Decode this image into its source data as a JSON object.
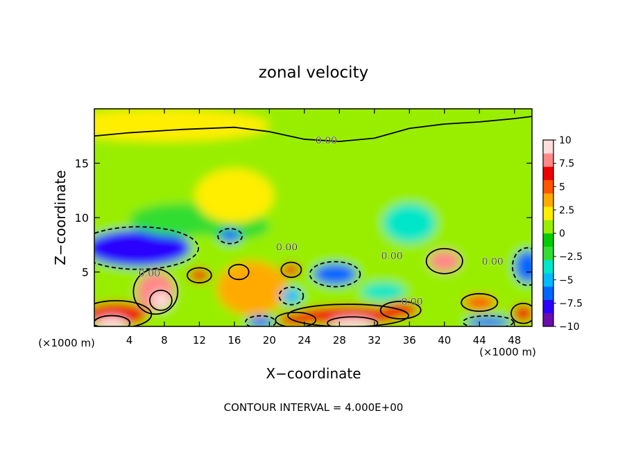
{
  "chart_data": {
    "type": "heatmap",
    "title": "zonal velocity",
    "xlabel": "X−coordinate",
    "ylabel": "Z−coordinate",
    "x_unit_left": "(×1000 m)",
    "x_unit_right": "(×1000 m)",
    "footer": "CONTOUR INTERVAL = 4.000E+00",
    "xlim": [
      0,
      50
    ],
    "ylim": [
      0,
      20
    ],
    "x_ticks": [
      4,
      8,
      12,
      16,
      20,
      24,
      28,
      32,
      36,
      40,
      44,
      48
    ],
    "y_ticks": [
      5,
      10,
      15
    ],
    "colorbar": {
      "min": -10,
      "max": 10,
      "labels": [
        "10",
        "7.5",
        "5",
        "2.5",
        "0",
        "−2.5",
        "−5",
        "−7.5",
        "−10"
      ],
      "label_values": [
        10,
        7.5,
        5,
        2.5,
        0,
        -2.5,
        -5,
        -7.5,
        -10
      ],
      "colors": [
        "#6a0dad",
        "#2a00ff",
        "#0066ff",
        "#00bbff",
        "#00e6c8",
        "#33dd33",
        "#00cc00",
        "#99ee00",
        "#ffee00",
        "#ffaa00",
        "#ff5500",
        "#ee0000",
        "#ff8888",
        "#ffdddd"
      ]
    },
    "contour_labels": [
      {
        "text": "0.00",
        "x": 26.5,
        "z": 17.1
      },
      {
        "text": "0.00",
        "x": 22,
        "z": 7.3
      },
      {
        "text": "0.00",
        "x": 6.3,
        "z": 4.9
      },
      {
        "text": "0.00",
        "x": 34,
        "z": 6.5
      },
      {
        "text": "0.00",
        "x": 36.3,
        "z": 2.3
      },
      {
        "text": "0.00",
        "x": 45.5,
        "z": 6.0
      }
    ],
    "features": [
      {
        "kind": "background",
        "value": 0
      },
      {
        "kind": "blob",
        "x": 5,
        "z": 7.2,
        "rx": 6,
        "rz": 1.7,
        "value": -8
      },
      {
        "kind": "blob",
        "x": 10,
        "z": 9.8,
        "rx": 6,
        "rz": 1.5,
        "value": -2.5
      },
      {
        "kind": "blob",
        "x": 16,
        "z": 9.2,
        "rx": 4,
        "rz": 1.2,
        "value": -2.5
      },
      {
        "kind": "blob",
        "x": 16,
        "z": 12,
        "rx": 4.5,
        "rz": 2.5,
        "value": 1.5
      },
      {
        "kind": "blob",
        "x": 7,
        "z": 3.2,
        "rx": 2.2,
        "rz": 1.8,
        "value": 8
      },
      {
        "kind": "blob",
        "x": 7.6,
        "z": 2.4,
        "rx": 1.1,
        "rz": 0.8,
        "value": 9
      },
      {
        "kind": "blob",
        "x": 2.5,
        "z": 1.1,
        "rx": 3.5,
        "rz": 1.1,
        "value": 7
      },
      {
        "kind": "blob",
        "x": 2,
        "z": 0.3,
        "rx": 1.8,
        "rz": 0.6,
        "value": 10
      },
      {
        "kind": "blob",
        "x": 18,
        "z": 3.5,
        "rx": 4,
        "rz": 2.5,
        "value": 3
      },
      {
        "kind": "blob",
        "x": 22.5,
        "z": 5.2,
        "rx": 1,
        "rz": 0.6,
        "value": 6
      },
      {
        "kind": "blob",
        "x": 12,
        "z": 4.7,
        "rx": 1.2,
        "rz": 0.6,
        "value": 6
      },
      {
        "kind": "blob",
        "x": 16.5,
        "z": 5.0,
        "rx": 1,
        "rz": 0.6,
        "value": 4
      },
      {
        "kind": "blob",
        "x": 29,
        "z": 1.0,
        "rx": 6,
        "rz": 0.9,
        "value": 7
      },
      {
        "kind": "blob",
        "x": 29.5,
        "z": 0.3,
        "rx": 2.5,
        "rz": 0.5,
        "value": 10
      },
      {
        "kind": "blob",
        "x": 23,
        "z": 0.6,
        "rx": 2,
        "rz": 0.6,
        "value": 6
      },
      {
        "kind": "blob",
        "x": 35,
        "z": 1.5,
        "rx": 2,
        "rz": 0.7,
        "value": 6
      },
      {
        "kind": "blob",
        "x": 27.5,
        "z": 4.8,
        "rx": 2.5,
        "rz": 1,
        "value": -6
      },
      {
        "kind": "blob",
        "x": 33,
        "z": 3.2,
        "rx": 2.5,
        "rz": 0.8,
        "value": -3
      },
      {
        "kind": "blob",
        "x": 22.5,
        "z": 2.8,
        "rx": 1.2,
        "rz": 0.7,
        "value": -5
      },
      {
        "kind": "blob",
        "x": 19,
        "z": 0.4,
        "rx": 1.5,
        "rz": 0.5,
        "value": -6
      },
      {
        "kind": "blob",
        "x": 15.5,
        "z": 8.3,
        "rx": 1.2,
        "rz": 0.6,
        "value": -6
      },
      {
        "kind": "blob",
        "x": 36,
        "z": 9.5,
        "rx": 3,
        "rz": 1.8,
        "value": -3
      },
      {
        "kind": "blob",
        "x": 40,
        "z": 6,
        "rx": 1.8,
        "rz": 1.0,
        "value": 8
      },
      {
        "kind": "blob",
        "x": 44,
        "z": 2.2,
        "rx": 1.8,
        "rz": 0.7,
        "value": 5
      },
      {
        "kind": "blob",
        "x": 45,
        "z": 0.4,
        "rx": 2.5,
        "rz": 0.5,
        "value": -7
      },
      {
        "kind": "blob",
        "x": 49.5,
        "z": 5.5,
        "rx": 1.5,
        "rz": 1.5,
        "value": -7
      },
      {
        "kind": "blob",
        "x": 49,
        "z": 1.2,
        "rx": 1.2,
        "rz": 0.8,
        "value": 6
      },
      {
        "kind": "blob",
        "x": 8,
        "z": 18.5,
        "rx": 12,
        "rz": 1.5,
        "value": 2
      },
      {
        "kind": "blob",
        "x": 43,
        "z": 14,
        "rx": 5,
        "rz": 4,
        "value": 1
      }
    ]
  }
}
